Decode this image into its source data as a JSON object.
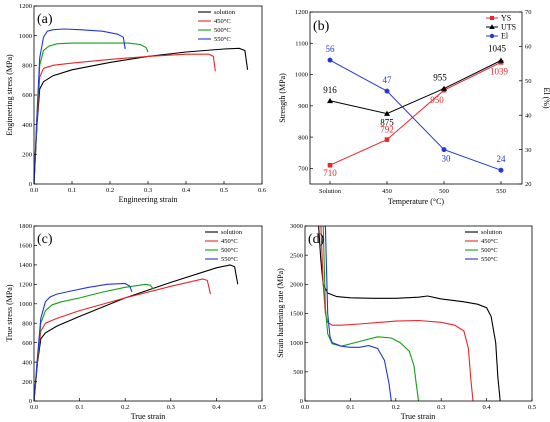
{
  "colors": {
    "solution": "#000000",
    "c450": "#e8272a",
    "c500": "#12a012",
    "c550": "#2238d6"
  },
  "chart_data": [
    {
      "panel": "(a)",
      "type": "line",
      "xlabel": "Engineering strain",
      "ylabel": "Engineering stress (MPa)",
      "xlim": [
        0,
        0.6
      ],
      "ylim": [
        0,
        1200
      ],
      "xticks": [
        0.0,
        0.1,
        0.2,
        0.3,
        0.4,
        0.5,
        0.6
      ],
      "yticks": [
        0,
        200,
        400,
        600,
        800,
        1000,
        1200
      ],
      "legend_position": "top-right",
      "series": [
        {
          "name": "solution",
          "color": "#000000",
          "x": [
            0,
            0.008,
            0.015,
            0.025,
            0.05,
            0.1,
            0.2,
            0.3,
            0.4,
            0.5,
            0.54,
            0.555,
            0.562
          ],
          "y": [
            0,
            400,
            640,
            690,
            730,
            770,
            820,
            860,
            890,
            910,
            915,
            900,
            770
          ]
        },
        {
          "name": "450°C",
          "color": "#e8272a",
          "x": [
            0,
            0.008,
            0.015,
            0.025,
            0.05,
            0.1,
            0.2,
            0.3,
            0.4,
            0.46,
            0.472,
            0.477
          ],
          "y": [
            0,
            420,
            720,
            780,
            800,
            815,
            840,
            860,
            875,
            875,
            860,
            760
          ]
        },
        {
          "name": "500°C",
          "color": "#12a012",
          "x": [
            0,
            0.008,
            0.015,
            0.025,
            0.04,
            0.06,
            0.1,
            0.2,
            0.25,
            0.28,
            0.295,
            0.3
          ],
          "y": [
            0,
            450,
            800,
            900,
            930,
            945,
            950,
            950,
            950,
            940,
            920,
            890
          ]
        },
        {
          "name": "550°C",
          "color": "#2238d6",
          "x": [
            0,
            0.008,
            0.015,
            0.025,
            0.035,
            0.05,
            0.08,
            0.12,
            0.18,
            0.22,
            0.235,
            0.24
          ],
          "y": [
            0,
            470,
            850,
            990,
            1030,
            1040,
            1045,
            1040,
            1030,
            1010,
            990,
            910
          ]
        }
      ]
    },
    {
      "panel": "(b)",
      "type": "line",
      "xlabel": "Temperature (°C)",
      "ylabel": "Strength (MPa)",
      "ylabel_right": "El (%)",
      "categories": [
        "Solution",
        "450",
        "500",
        "550"
      ],
      "ylim": [
        650,
        1200
      ],
      "yticks": [
        700,
        800,
        900,
        1000,
        1100,
        1200
      ],
      "ylim_right": [
        20,
        70
      ],
      "yticks_right": [
        20,
        30,
        40,
        50,
        60,
        70
      ],
      "legend_position": "top-right",
      "series": [
        {
          "name": "YS",
          "color": "#e8272a",
          "marker": "square",
          "axis": "left",
          "values": [
            710,
            792,
            950,
            1039
          ],
          "labels": [
            "710",
            "792",
            "950",
            "1039"
          ]
        },
        {
          "name": "UTS",
          "color": "#000000",
          "marker": "triangle",
          "axis": "left",
          "values": [
            916,
            875,
            955,
            1045
          ],
          "labels": [
            "916",
            "875",
            "955",
            "1045"
          ]
        },
        {
          "name": "El",
          "color": "#2238d6",
          "marker": "circle",
          "axis": "right",
          "values": [
            56,
            47,
            30,
            24
          ],
          "labels": [
            "56",
            "47",
            "30",
            "24"
          ]
        }
      ]
    },
    {
      "panel": "(c)",
      "type": "line",
      "xlabel": "True strain",
      "ylabel": "True stress (MPa)",
      "xlim": [
        0,
        0.5
      ],
      "ylim": [
        0,
        1800
      ],
      "xticks": [
        0.0,
        0.1,
        0.2,
        0.3,
        0.4,
        0.5
      ],
      "yticks": [
        0,
        200,
        400,
        600,
        800,
        1000,
        1200,
        1400,
        1600,
        1800
      ],
      "legend_position": "top-right",
      "series": [
        {
          "name": "solution",
          "color": "#000000",
          "x": [
            0,
            0.008,
            0.015,
            0.025,
            0.05,
            0.1,
            0.2,
            0.3,
            0.4,
            0.43,
            0.44,
            0.447
          ],
          "y": [
            0,
            400,
            640,
            700,
            770,
            870,
            1060,
            1220,
            1370,
            1400,
            1380,
            1200
          ]
        },
        {
          "name": "450°C",
          "color": "#e8272a",
          "x": [
            0,
            0.008,
            0.015,
            0.025,
            0.05,
            0.1,
            0.2,
            0.3,
            0.37,
            0.38,
            0.387
          ],
          "y": [
            0,
            420,
            720,
            800,
            850,
            930,
            1060,
            1180,
            1255,
            1240,
            1100
          ]
        },
        {
          "name": "500°C",
          "color": "#12a012",
          "x": [
            0,
            0.008,
            0.015,
            0.025,
            0.04,
            0.06,
            0.1,
            0.15,
            0.2,
            0.245,
            0.255,
            0.262
          ],
          "y": [
            0,
            450,
            800,
            930,
            990,
            1020,
            1060,
            1120,
            1170,
            1200,
            1190,
            1150
          ]
        },
        {
          "name": "550°C",
          "color": "#2238d6",
          "x": [
            0,
            0.008,
            0.015,
            0.025,
            0.035,
            0.05,
            0.08,
            0.12,
            0.16,
            0.2,
            0.21,
            0.215
          ],
          "y": [
            0,
            470,
            850,
            1020,
            1070,
            1100,
            1130,
            1170,
            1200,
            1210,
            1180,
            1120
          ]
        }
      ]
    },
    {
      "panel": "(d)",
      "type": "line",
      "xlabel": "True strain",
      "ylabel": "Strain hardening rate (MPa)",
      "xlim": [
        0,
        0.5
      ],
      "ylim": [
        0,
        3000
      ],
      "xticks": [
        0.0,
        0.1,
        0.2,
        0.3,
        0.4,
        0.5
      ],
      "yticks": [
        0,
        500,
        1000,
        1500,
        2000,
        2500,
        3000
      ],
      "legend_position": "top-right",
      "series": [
        {
          "name": "solution",
          "color": "#000000",
          "x": [
            0.03,
            0.035,
            0.04,
            0.05,
            0.07,
            0.1,
            0.15,
            0.2,
            0.25,
            0.27,
            0.3,
            0.35,
            0.38,
            0.4,
            0.41,
            0.42,
            0.425,
            0.43
          ],
          "y": [
            3000,
            2400,
            2000,
            1850,
            1790,
            1770,
            1760,
            1760,
            1780,
            1800,
            1750,
            1700,
            1660,
            1600,
            1450,
            1000,
            400,
            0
          ]
        },
        {
          "name": "450°C",
          "color": "#e8272a",
          "x": [
            0.035,
            0.04,
            0.045,
            0.05,
            0.06,
            0.08,
            0.12,
            0.2,
            0.25,
            0.3,
            0.33,
            0.35,
            0.36,
            0.365,
            0.37
          ],
          "y": [
            3000,
            2000,
            1500,
            1350,
            1300,
            1300,
            1320,
            1370,
            1380,
            1350,
            1300,
            1200,
            900,
            400,
            0
          ]
        },
        {
          "name": "500°C",
          "color": "#12a012",
          "x": [
            0.04,
            0.045,
            0.05,
            0.06,
            0.08,
            0.12,
            0.16,
            0.19,
            0.21,
            0.23,
            0.24,
            0.245,
            0.25
          ],
          "y": [
            3000,
            1600,
            1150,
            980,
            940,
            1020,
            1100,
            1080,
            1000,
            850,
            600,
            300,
            0
          ]
        },
        {
          "name": "550°C",
          "color": "#2238d6",
          "x": [
            0.045,
            0.05,
            0.055,
            0.06,
            0.08,
            0.1,
            0.12,
            0.14,
            0.16,
            0.175,
            0.185,
            0.19
          ],
          "y": [
            3000,
            1500,
            1100,
            1000,
            940,
            920,
            920,
            950,
            900,
            700,
            300,
            0
          ]
        }
      ]
    }
  ]
}
